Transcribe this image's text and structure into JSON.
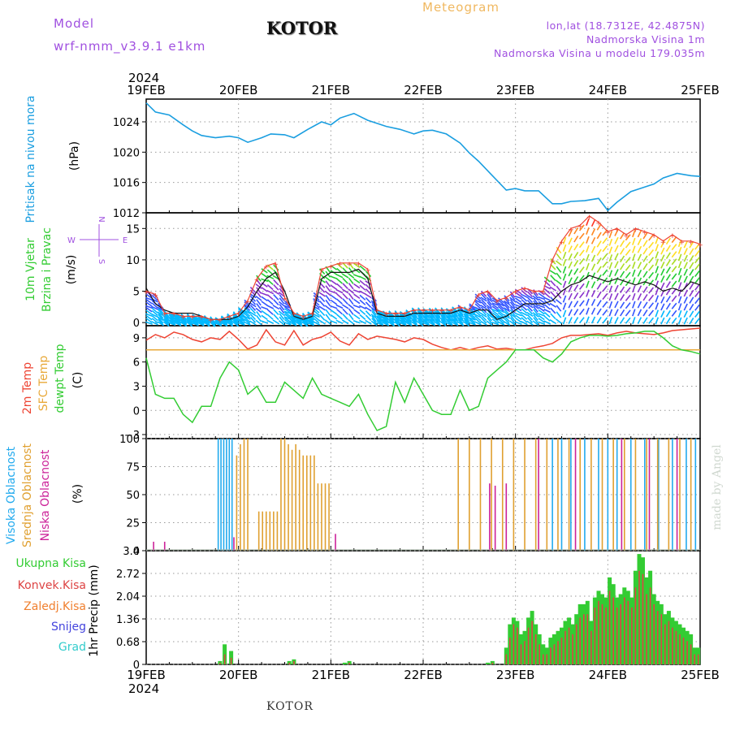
{
  "header": {
    "model_label": "Model",
    "model_name": "wrf-nmm_v3.9.1  e1km",
    "station": "KOTOR",
    "title": "Meteogram",
    "location": "lon,lat (18.7312E, 42.4875N)",
    "elevation": "Nadmorska Visina 1m",
    "model_elevation": "Nadmorska Visina u modelu 179.035m"
  },
  "footer": {
    "station": "KOTOR",
    "credit": "made by Angel"
  },
  "colors": {
    "pressure": "#1a9ee0",
    "temp2m": "#ee4433",
    "sfc_temp": "#e8a838",
    "dewpt": "#33cc33",
    "cloud_high": "#22aaee",
    "cloud_mid": "#e0a030",
    "cloud_low": "#cc2299",
    "precip_total": "#33cc33",
    "precip_conv": "#dd4444",
    "grid": "#999999"
  },
  "chart_data": [
    {
      "type": "line",
      "panel": "pressure",
      "year": "2024",
      "x_ticks": [
        "19FEB",
        "20FEB",
        "21FEB",
        "22FEB",
        "23FEB",
        "24FEB",
        "25FEB"
      ],
      "ylabel": [
        "Pritisak na nivou mora",
        "(hPa)"
      ],
      "ylim": [
        1012,
        1027
      ],
      "yticks": [
        1012,
        1016,
        1020,
        1024
      ],
      "x_days": [
        0,
        0.1,
        0.25,
        0.4,
        0.5,
        0.6,
        0.75,
        0.9,
        1.0,
        1.1,
        1.25,
        1.35,
        1.5,
        1.6,
        1.75,
        1.9,
        2.0,
        2.1,
        2.25,
        2.4,
        2.5,
        2.6,
        2.75,
        2.9,
        3.0,
        3.1,
        3.25,
        3.4,
        3.5,
        3.6,
        3.75,
        3.9,
        4.0,
        4.1,
        4.25,
        4.4,
        4.5,
        4.6,
        4.75,
        4.9,
        5.0,
        5.1,
        5.25,
        5.4,
        5.5,
        5.6,
        5.75,
        5.9,
        6.0
      ],
      "values": [
        1026.5,
        1025.3,
        1024.9,
        1023.6,
        1022.8,
        1022.2,
        1021.9,
        1022.1,
        1021.9,
        1021.3,
        1021.9,
        1022.4,
        1022.3,
        1021.9,
        1023.0,
        1024.0,
        1023.6,
        1024.5,
        1025.1,
        1024.2,
        1023.8,
        1023.4,
        1023.0,
        1022.4,
        1022.8,
        1022.9,
        1022.4,
        1021.2,
        1019.9,
        1018.8,
        1016.9,
        1015.0,
        1015.2,
        1014.9,
        1014.9,
        1013.2,
        1013.2,
        1013.5,
        1013.6,
        1013.9,
        1012.3,
        1013.4,
        1014.8,
        1015.4,
        1015.8,
        1016.6,
        1017.2,
        1016.9,
        1016.8
      ],
      "series": [
        {
          "name": "Pritisak na nivou mora"
        }
      ]
    },
    {
      "type": "line",
      "panel": "wind",
      "ylabel": [
        "10m Vjetar",
        "Brzina i Pravac",
        "(m/s)"
      ],
      "direction_legend": [
        "N",
        "E",
        "S",
        "W"
      ],
      "ylim": [
        -0.5,
        17.5
      ],
      "yticks": [
        0,
        5,
        10,
        15
      ],
      "x_days": [
        0,
        0.1,
        0.2,
        0.3,
        0.4,
        0.5,
        0.6,
        0.7,
        0.8,
        0.9,
        1.0,
        1.1,
        1.2,
        1.3,
        1.4,
        1.5,
        1.6,
        1.7,
        1.8,
        1.9,
        2.0,
        2.1,
        2.2,
        2.3,
        2.4,
        2.5,
        2.6,
        2.7,
        2.8,
        2.9,
        3.0,
        3.1,
        3.2,
        3.3,
        3.4,
        3.5,
        3.6,
        3.7,
        3.8,
        3.9,
        4.0,
        4.1,
        4.2,
        4.3,
        4.4,
        4.5,
        4.6,
        4.7,
        4.8,
        4.9,
        5.0,
        5.1,
        5.2,
        5.3,
        5.4,
        5.5,
        5.6,
        5.7,
        5.8,
        5.9,
        6.0
      ],
      "values": [
        5.5,
        3.0,
        2.0,
        1.5,
        1.5,
        1.5,
        1.0,
        0.5,
        0.5,
        0.5,
        1.0,
        2.5,
        5.0,
        7.0,
        8.0,
        5.0,
        1.0,
        0.5,
        1.0,
        7.0,
        8.0,
        8.0,
        8.0,
        8.5,
        7.0,
        1.5,
        1.0,
        1.0,
        1.0,
        1.5,
        1.5,
        1.5,
        1.5,
        1.5,
        2.0,
        1.5,
        2.0,
        2.0,
        0.5,
        1.0,
        2.0,
        3.0,
        3.0,
        3.0,
        3.5,
        5.0,
        6.0,
        6.5,
        7.5,
        7.0,
        6.5,
        7.0,
        6.5,
        6.0,
        6.5,
        6.0,
        5.0,
        5.5,
        5.0,
        6.5,
        6.0
      ],
      "gust_values": [
        5.0,
        4.5,
        1.5,
        1.5,
        1.0,
        1.0,
        1.0,
        0.5,
        0.5,
        1.0,
        1.5,
        3.5,
        7.0,
        9.0,
        9.5,
        4.0,
        1.5,
        1.0,
        1.5,
        8.5,
        9.0,
        9.5,
        9.5,
        9.5,
        8.5,
        2.0,
        1.5,
        1.5,
        1.5,
        2.0,
        2.0,
        2.0,
        2.0,
        2.0,
        2.5,
        2.0,
        4.5,
        5.0,
        3.5,
        4.0,
        5.0,
        5.5,
        5.0,
        5.0,
        10.0,
        13.0,
        15.0,
        15.5,
        17.0,
        16.0,
        14.5,
        15.0,
        14.0,
        15.0,
        14.5,
        14.0,
        13.0,
        14.0,
        13.0,
        13.0,
        12.5
      ],
      "arrow_color_ramp": [
        "#00b8ff",
        "#3355ff",
        "#8833cc",
        "#22cc33",
        "#aadd22",
        "#ffdd22",
        "#ff8822",
        "#ff3322"
      ]
    },
    {
      "type": "line",
      "panel": "temperature",
      "ylabel": [
        "2m Temp",
        "SFC Temp",
        "dewpt Temp",
        "(C)"
      ],
      "ylim": [
        -3.5,
        10.5
      ],
      "yticks": [
        -3,
        0,
        3,
        6,
        9
      ],
      "x_days": [
        0,
        0.1,
        0.2,
        0.3,
        0.4,
        0.5,
        0.6,
        0.7,
        0.8,
        0.9,
        1.0,
        1.1,
        1.2,
        1.3,
        1.4,
        1.5,
        1.6,
        1.7,
        1.8,
        1.9,
        2.0,
        2.1,
        2.2,
        2.3,
        2.4,
        2.5,
        2.6,
        2.7,
        2.8,
        2.9,
        3.0,
        3.1,
        3.2,
        3.3,
        3.4,
        3.5,
        3.6,
        3.7,
        3.8,
        3.9,
        4.0,
        4.1,
        4.2,
        4.3,
        4.4,
        4.5,
        4.6,
        4.7,
        4.8,
        4.9,
        5.0,
        5.1,
        5.2,
        5.3,
        5.4,
        5.5,
        5.6,
        5.7,
        5.8,
        5.9,
        6.0
      ],
      "series": [
        {
          "name": "2m Temp",
          "values": [
            8.7,
            9.4,
            9.0,
            9.7,
            9.4,
            8.8,
            8.5,
            9.0,
            8.8,
            9.8,
            8.8,
            7.6,
            8.1,
            10.0,
            8.5,
            8.1,
            9.9,
            8.1,
            8.8,
            9.1,
            9.7,
            8.6,
            8.1,
            9.5,
            8.8,
            9.2,
            9.0,
            8.8,
            8.5,
            9.0,
            8.8,
            8.2,
            7.8,
            7.5,
            7.8,
            7.5,
            7.8,
            8.0,
            7.6,
            7.7,
            7.5,
            7.5,
            7.8,
            8.0,
            8.3,
            9.0,
            9.3,
            9.3,
            9.4,
            9.5,
            9.3,
            9.6,
            9.8,
            9.6,
            9.5,
            9.4,
            9.6,
            9.9,
            10.0,
            10.1,
            10.2
          ]
        },
        {
          "name": "SFC Temp",
          "values": [
            7.5,
            7.5,
            7.5,
            7.5,
            7.5,
            7.5,
            7.5,
            7.5,
            7.5,
            7.5,
            7.5,
            7.5,
            7.5,
            7.5,
            7.5,
            7.5,
            7.5,
            7.5,
            7.5,
            7.5,
            7.5,
            7.5,
            7.5,
            7.5,
            7.5,
            7.5,
            7.5,
            7.5,
            7.5,
            7.5,
            7.5,
            7.5,
            7.5,
            7.5,
            7.5,
            7.5,
            7.5,
            7.5,
            7.5,
            7.5,
            7.5,
            7.5,
            7.5,
            7.5,
            7.5,
            7.5,
            7.5,
            7.5,
            7.5,
            7.5,
            7.5,
            7.5,
            7.5,
            7.5,
            7.5,
            7.5,
            7.5,
            7.5,
            7.5,
            7.5,
            7.5
          ]
        },
        {
          "name": "dewpt Temp",
          "values": [
            6.5,
            2.0,
            1.5,
            1.5,
            -0.5,
            -1.5,
            0.5,
            0.5,
            4.0,
            6.0,
            5.0,
            2.0,
            3.0,
            1.0,
            1.0,
            3.5,
            2.5,
            1.5,
            4.0,
            2.0,
            1.5,
            1.0,
            0.5,
            2.0,
            -0.5,
            -2.5,
            -2.0,
            3.5,
            1.0,
            4.0,
            2.0,
            0.0,
            -0.5,
            -0.5,
            2.5,
            0.0,
            0.5,
            4.0,
            5.0,
            6.0,
            7.5,
            7.5,
            7.5,
            6.5,
            6.0,
            7.0,
            8.5,
            9.0,
            9.3,
            9.3,
            9.2,
            9.3,
            9.5,
            9.6,
            9.8,
            9.8,
            9.0,
            8.0,
            7.5,
            7.3,
            7.0
          ]
        }
      ]
    },
    {
      "type": "bar",
      "panel": "clouds",
      "ylabel": [
        "Visoka Oblacnost",
        "Srednja Oblacnost",
        "Niska Oblacnost",
        "(%)"
      ],
      "ylim": [
        0,
        100
      ],
      "yticks": [
        0,
        25,
        50,
        75,
        100
      ],
      "series": [
        {
          "name": "Visoka Oblacnost",
          "x_days": [
            0.78,
            0.81,
            0.84,
            0.87,
            0.9,
            0.93,
            4.4,
            4.5,
            4.6,
            4.75,
            4.9,
            5.0,
            5.1,
            5.25,
            5.4,
            5.55,
            5.7,
            5.85,
            5.95
          ],
          "values": [
            100,
            100,
            100,
            100,
            100,
            100,
            100,
            100,
            100,
            100,
            100,
            100,
            100,
            100,
            100,
            100,
            100,
            100,
            100
          ]
        },
        {
          "name": "Srednja Oblacnost",
          "x_days": [
            0.98,
            1.02,
            1.06,
            1.1,
            1.22,
            1.26,
            1.3,
            1.34,
            1.38,
            1.42,
            1.46,
            1.5,
            1.54,
            1.58,
            1.62,
            1.66,
            1.7,
            1.74,
            1.78,
            1.82,
            1.86,
            1.9,
            1.94,
            1.98,
            3.38,
            3.5,
            3.62,
            3.74,
            3.86,
            3.98,
            4.1,
            4.22,
            4.34,
            4.46,
            4.58,
            4.7,
            4.82,
            4.94,
            5.06,
            5.18,
            5.3,
            5.42,
            5.54,
            5.66,
            5.78,
            5.9
          ],
          "values": [
            85,
            95,
            100,
            100,
            35,
            35,
            35,
            35,
            35,
            35,
            100,
            100,
            95,
            90,
            95,
            90,
            85,
            85,
            85,
            85,
            60,
            60,
            60,
            60,
            100,
            100,
            100,
            100,
            100,
            100,
            100,
            100,
            100,
            100,
            100,
            100,
            100,
            100,
            100,
            100,
            100,
            100,
            100,
            100,
            100,
            100
          ]
        },
        {
          "name": "Niska Oblacnost",
          "x_days": [
            0.08,
            0.2,
            0.95,
            2.05,
            3.72,
            3.78,
            3.9,
            4.25,
            4.65,
            5.15,
            5.45,
            5.75
          ],
          "values": [
            8,
            8,
            12,
            15,
            60,
            58,
            60,
            100,
            100,
            100,
            100,
            100
          ]
        }
      ]
    },
    {
      "type": "bar",
      "panel": "precipitation",
      "ylabel": [
        "1hr Precip (mm)"
      ],
      "legend": [
        "Ukupna Kisa",
        "Konvek.Kisa",
        "Zaledj.Kisa",
        "Snijeg",
        "Grad"
      ],
      "ylim": [
        0,
        3.4
      ],
      "yticks": [
        0,
        0.68,
        1.36,
        2.04,
        2.72,
        3.4
      ],
      "x_days": [
        0.8,
        0.85,
        0.92,
        1.55,
        1.6,
        2.15,
        2.2,
        3.7,
        3.75,
        3.9,
        3.94,
        3.98,
        4.02,
        4.06,
        4.1,
        4.14,
        4.18,
        4.22,
        4.26,
        4.3,
        4.34,
        4.38,
        4.42,
        4.46,
        4.5,
        4.54,
        4.58,
        4.62,
        4.66,
        4.7,
        4.74,
        4.78,
        4.82,
        4.86,
        4.9,
        4.94,
        4.98,
        5.02,
        5.06,
        5.1,
        5.14,
        5.18,
        5.22,
        5.26,
        5.3,
        5.34,
        5.38,
        5.42,
        5.46,
        5.5,
        5.54,
        5.58,
        5.62,
        5.66,
        5.7,
        5.74,
        5.78,
        5.82,
        5.86,
        5.9,
        5.94,
        5.98
      ],
      "values": [
        0.1,
        0.6,
        0.4,
        0.1,
        0.15,
        0.05,
        0.1,
        0.05,
        0.1,
        0.5,
        1.2,
        1.4,
        1.3,
        0.9,
        1.0,
        1.4,
        1.6,
        1.2,
        0.9,
        0.6,
        0.5,
        0.8,
        0.9,
        1.0,
        1.1,
        1.3,
        1.4,
        1.2,
        1.5,
        1.8,
        1.8,
        1.9,
        1.3,
        2.0,
        2.2,
        2.1,
        2.0,
        2.6,
        2.4,
        2.0,
        2.1,
        2.3,
        2.2,
        2.0,
        2.8,
        3.3,
        3.2,
        2.6,
        2.8,
        2.1,
        1.9,
        1.8,
        1.5,
        1.6,
        1.4,
        1.3,
        1.2,
        1.1,
        1.0,
        0.9,
        0.5,
        0.5
      ],
      "conv_values": [
        0.05,
        0.3,
        0.2,
        0.05,
        0.1,
        0.0,
        0.05,
        0.0,
        0.05,
        0.3,
        0.8,
        1.2,
        1.1,
        0.6,
        0.7,
        1.1,
        1.3,
        0.9,
        0.6,
        0.3,
        0.3,
        0.5,
        0.6,
        0.7,
        0.8,
        1.0,
        1.1,
        0.9,
        1.2,
        1.4,
        1.5,
        1.5,
        1.0,
        1.7,
        1.9,
        1.8,
        1.7,
        2.2,
        2.0,
        1.7,
        1.8,
        2.0,
        1.9,
        1.7,
        2.3,
        2.8,
        2.7,
        2.1,
        2.3,
        1.8,
        1.6,
        1.5,
        1.2,
        1.3,
        1.1,
        1.0,
        0.9,
        0.8,
        0.7,
        0.6,
        0.3,
        0.3
      ]
    }
  ]
}
